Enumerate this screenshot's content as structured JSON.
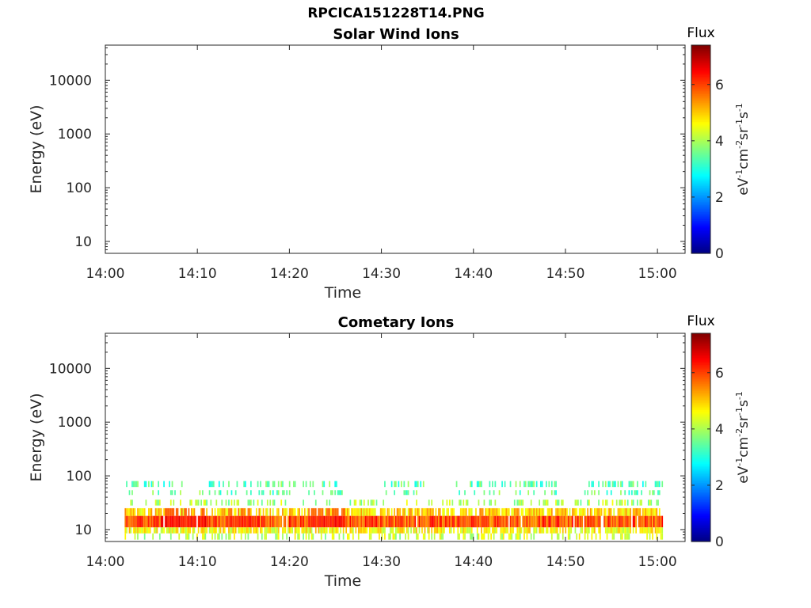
{
  "title": "RPCICA151228T14.PNG",
  "chart_data": [
    {
      "type": "heatmap",
      "title": "Solar Wind Ions",
      "xlabel": "Time",
      "ylabel": "Energy (eV)",
      "x_ticks": [
        "14:00",
        "14:10",
        "14:20",
        "14:30",
        "14:40",
        "14:50",
        "15:00"
      ],
      "xlim_minutes": [
        0,
        63
      ],
      "yscale": "log",
      "ylim": [
        6,
        45000
      ],
      "y_ticks": [
        10,
        100,
        1000,
        10000
      ],
      "y_tick_labels": [
        "10",
        "100",
        "1000",
        "10000"
      ],
      "colorbar": {
        "title": "Flux",
        "range": [
          0,
          7.4
        ],
        "ticks": [
          0,
          2,
          4,
          6
        ],
        "tick_labels": [
          "0",
          "2",
          "4",
          "6"
        ],
        "colormap": "jet",
        "units": {
          "base": "eV",
          "exp1": "-1",
          "mid1": "cm",
          "exp2": "-2",
          "mid2": "sr",
          "exp3": "-1",
          "mid3": "s",
          "exp4": "-1"
        }
      },
      "data_bands": []
    },
    {
      "type": "heatmap",
      "title": "Cometary Ions",
      "xlabel": "Time",
      "ylabel": "Energy (eV)",
      "x_ticks": [
        "14:00",
        "14:10",
        "14:20",
        "14:30",
        "14:40",
        "14:50",
        "15:00"
      ],
      "xlim_minutes": [
        0,
        63
      ],
      "yscale": "log",
      "ylim": [
        6,
        45000
      ],
      "y_ticks": [
        10,
        100,
        1000,
        10000
      ],
      "y_tick_labels": [
        "10",
        "100",
        "1000",
        "10000"
      ],
      "colorbar": {
        "title": "Flux",
        "range": [
          0,
          7.4
        ],
        "ticks": [
          0,
          2,
          4,
          6
        ],
        "tick_labels": [
          "0",
          "2",
          "4",
          "6"
        ],
        "colormap": "jet",
        "units": {
          "base": "eV",
          "exp1": "-1",
          "mid1": "cm",
          "exp2": "-2",
          "mid2": "sr",
          "exp3": "-1",
          "mid3": "s",
          "exp4": "-1"
        }
      },
      "data_start_minute": 2.1,
      "data_end_minute": 60.5,
      "data_bands": [
        {
          "energy_low": 11,
          "energy_high": 18,
          "flux": 5.9,
          "fill_prob": 0.96
        },
        {
          "energy_low": 18,
          "energy_high": 25,
          "flux": 4.9,
          "fill_prob": 0.75
        },
        {
          "energy_low": 8.5,
          "energy_high": 11,
          "flux": 4.6,
          "fill_prob": 0.8
        },
        {
          "energy_low": 6.5,
          "energy_high": 8.5,
          "flux": 4.2,
          "fill_prob": 0.35
        },
        {
          "energy_low": 28,
          "energy_high": 36,
          "flux": 4.0,
          "fill_prob": 0.3
        },
        {
          "energy_low": 44,
          "energy_high": 54,
          "flux": 3.5,
          "fill_prob": 0.25
        },
        {
          "energy_low": 62,
          "energy_high": 80,
          "flux": 3.4,
          "fill_prob": 0.35
        }
      ],
      "enhanced_intervals_minutes": [
        {
          "start": 6,
          "end": 11,
          "flux": 6.4
        },
        {
          "start": 13,
          "end": 16,
          "flux": 6.2
        },
        {
          "start": 22,
          "end": 26,
          "flux": 6.3
        }
      ],
      "high_energy_gaps_minutes": [
        [
          26,
          30
        ],
        [
          34.5,
          38
        ],
        [
          49,
          52
        ]
      ]
    }
  ]
}
